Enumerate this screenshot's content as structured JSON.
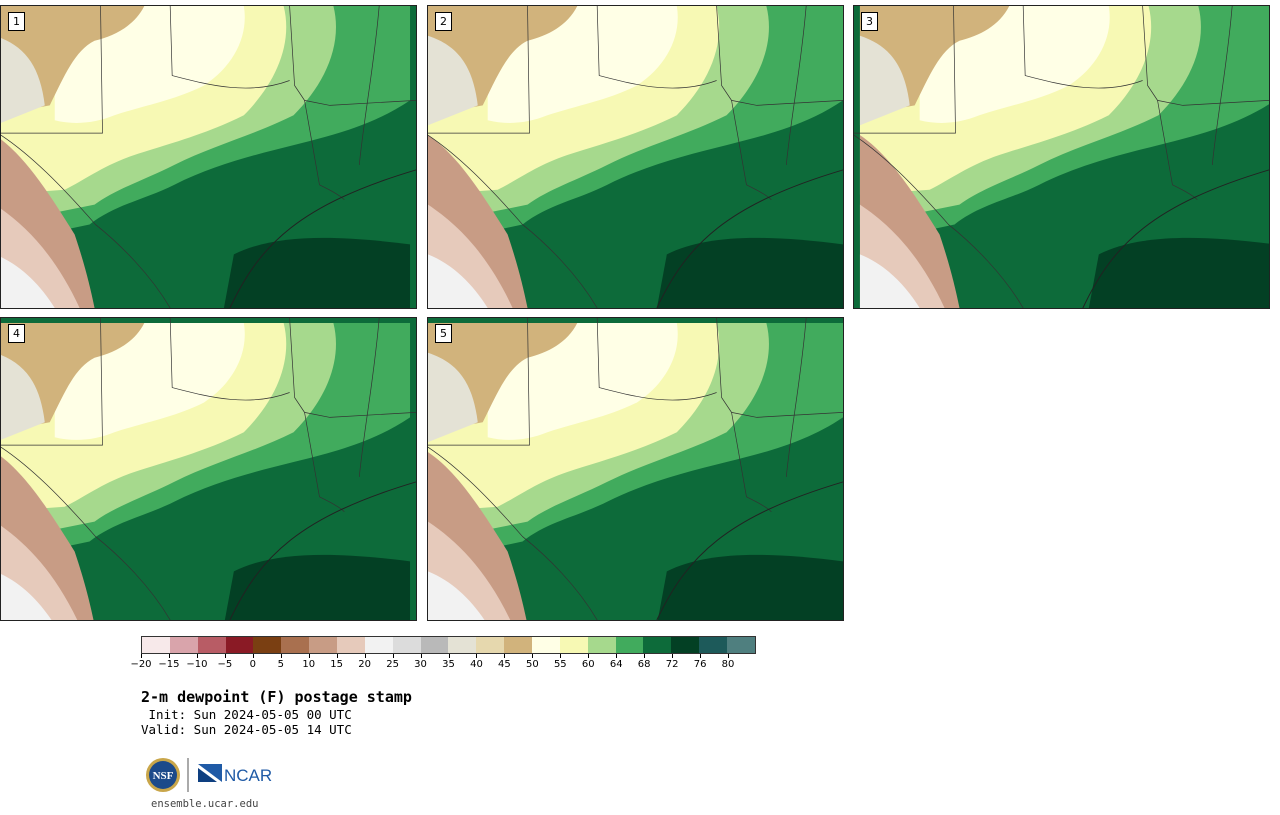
{
  "panels": [
    {
      "label": "1"
    },
    {
      "label": "2"
    },
    {
      "label": "3"
    },
    {
      "label": "4"
    },
    {
      "label": "5"
    }
  ],
  "colorbar": {
    "colors": [
      "#f7e9ea",
      "#d9a4ab",
      "#b85c65",
      "#8a1a25",
      "#7a3f12",
      "#a9704f",
      "#c89c85",
      "#e6cabb",
      "#f2f2f2",
      "#dcdcdc",
      "#b9b9b9",
      "#e4e2d5",
      "#e6d8ae",
      "#d1b37c",
      "#ffffe6",
      "#f7f9b4",
      "#a6d98d",
      "#41ab5d",
      "#0d6b3a",
      "#034024",
      "#1d5a5a",
      "#4f7f7f"
    ],
    "ticks": [
      "-20",
      "-15",
      "-10",
      "-5",
      "0",
      "5",
      "10",
      "15",
      "20",
      "25",
      "30",
      "35",
      "40",
      "45",
      "50",
      "55",
      "60",
      "64",
      "68",
      "72",
      "76",
      "80"
    ]
  },
  "title": "2-m dewpoint (F) postage stamp",
  "init": " Init: Sun 2024-05-05 00 UTC",
  "valid": "Valid: Sun 2024-05-05 14 UTC",
  "logos": {
    "nsf": "NSF",
    "ncar": "NCAR"
  },
  "website": "ensemble.ucar.edu"
}
